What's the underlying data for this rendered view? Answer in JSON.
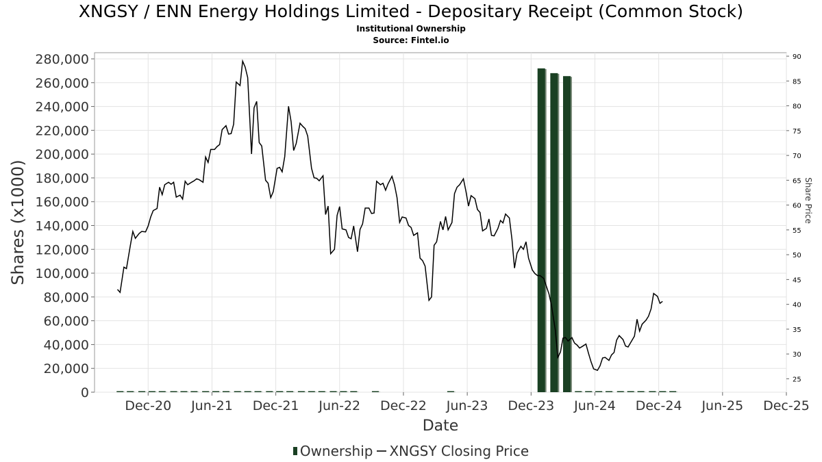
{
  "chart_data": {
    "type": "bar",
    "title": "XNGSY / ENN Energy Holdings Limited - Depositary Receipt (Common Stock)",
    "subtitle": "Institutional Ownership",
    "source": "Source: Fintel.io",
    "xlabel": "Date",
    "ylabel": "Shares (x1000)",
    "y2label": "Share Price",
    "x_ticks": [
      "Dec-20",
      "Jun-21",
      "Dec-21",
      "Jun-22",
      "Dec-22",
      "Jun-23",
      "Dec-23",
      "Jun-24",
      "Dec-24",
      "Jun-25",
      "Dec-25"
    ],
    "x_range": [
      2020.58,
      2026.0
    ],
    "ylim": [
      0,
      280000
    ],
    "y_ticks": [
      "0",
      "20,000",
      "40,000",
      "60,000",
      "80,000",
      "100,000",
      "120,000",
      "140,000",
      "160,000",
      "180,000",
      "200,000",
      "220,000",
      "240,000",
      "260,000",
      "280,000"
    ],
    "y2lim": [
      22.3,
      90.7
    ],
    "y2_ticks": [
      25,
      30,
      35,
      40,
      45,
      50,
      55,
      60,
      65,
      70,
      75,
      80,
      85,
      90
    ],
    "grid": true,
    "legend_position": "bottom",
    "series": [
      {
        "name": "Ownership",
        "kind": "bar",
        "color": "#1a4023",
        "points": [
          {
            "x": 2020.78,
            "y": 600
          },
          {
            "x": 2020.86,
            "y": 400
          },
          {
            "x": 2020.95,
            "y": 400
          },
          {
            "x": 2021.03,
            "y": 400
          },
          {
            "x": 2021.11,
            "y": 400
          },
          {
            "x": 2021.2,
            "y": 400
          },
          {
            "x": 2021.28,
            "y": 500
          },
          {
            "x": 2021.36,
            "y": 400
          },
          {
            "x": 2021.45,
            "y": 400
          },
          {
            "x": 2021.53,
            "y": 400
          },
          {
            "x": 2021.61,
            "y": 400
          },
          {
            "x": 2021.7,
            "y": 400
          },
          {
            "x": 2021.78,
            "y": 400
          },
          {
            "x": 2021.86,
            "y": 400
          },
          {
            "x": 2021.95,
            "y": 400
          },
          {
            "x": 2022.03,
            "y": 400
          },
          {
            "x": 2022.11,
            "y": 400
          },
          {
            "x": 2022.2,
            "y": 400
          },
          {
            "x": 2022.28,
            "y": 400
          },
          {
            "x": 2022.36,
            "y": 300
          },
          {
            "x": 2022.45,
            "y": 300
          },
          {
            "x": 2022.53,
            "y": 300
          },
          {
            "x": 2022.61,
            "y": 300
          },
          {
            "x": 2022.78,
            "y": 400
          },
          {
            "x": 2023.37,
            "y": 300
          },
          {
            "x": 2024.08,
            "y": 272000
          },
          {
            "x": 2024.18,
            "y": 268000
          },
          {
            "x": 2024.28,
            "y": 265500
          },
          {
            "x": 2024.37,
            "y": 400
          },
          {
            "x": 2024.45,
            "y": 400
          },
          {
            "x": 2024.53,
            "y": 400
          },
          {
            "x": 2024.61,
            "y": 400
          },
          {
            "x": 2024.7,
            "y": 400
          },
          {
            "x": 2024.78,
            "y": 400
          },
          {
            "x": 2024.86,
            "y": 400
          },
          {
            "x": 2024.95,
            "y": 400
          },
          {
            "x": 2025.03,
            "y": 400
          },
          {
            "x": 2025.11,
            "y": 400
          }
        ]
      },
      {
        "name": "XNGSY Closing Price",
        "kind": "line",
        "axis": "right",
        "color": "#000000",
        "points": [
          [
            2020.76,
            43.0
          ],
          [
            2020.78,
            42.4
          ],
          [
            2020.81,
            47.5
          ],
          [
            2020.83,
            47.2
          ],
          [
            2020.86,
            51.8
          ],
          [
            2020.88,
            54.7
          ],
          [
            2020.9,
            53.3
          ],
          [
            2020.93,
            54.3
          ],
          [
            2020.95,
            54.7
          ],
          [
            2020.98,
            54.6
          ],
          [
            2021.0,
            55.8
          ],
          [
            2021.02,
            57.6
          ],
          [
            2021.04,
            58.9
          ],
          [
            2021.07,
            59.3
          ],
          [
            2021.09,
            63.6
          ],
          [
            2021.11,
            62.1
          ],
          [
            2021.13,
            64.1
          ],
          [
            2021.16,
            64.6
          ],
          [
            2021.18,
            64.2
          ],
          [
            2021.2,
            64.6
          ],
          [
            2021.22,
            61.6
          ],
          [
            2021.25,
            62.0
          ],
          [
            2021.27,
            61.2
          ],
          [
            2021.29,
            64.8
          ],
          [
            2021.31,
            64.1
          ],
          [
            2021.34,
            64.6
          ],
          [
            2021.36,
            64.9
          ],
          [
            2021.38,
            65.3
          ],
          [
            2021.4,
            65.1
          ],
          [
            2021.43,
            64.6
          ],
          [
            2021.45,
            69.7
          ],
          [
            2021.47,
            68.6
          ],
          [
            2021.49,
            71.2
          ],
          [
            2021.52,
            71.2
          ],
          [
            2021.54,
            71.8
          ],
          [
            2021.56,
            72.2
          ],
          [
            2021.58,
            75.2
          ],
          [
            2021.61,
            76.0
          ],
          [
            2021.63,
            74.3
          ],
          [
            2021.65,
            74.4
          ],
          [
            2021.67,
            76.3
          ],
          [
            2021.69,
            84.8
          ],
          [
            2021.72,
            84.1
          ],
          [
            2021.74,
            89.0
          ],
          [
            2021.76,
            87.8
          ],
          [
            2021.78,
            85.7
          ],
          [
            2021.81,
            70.3
          ],
          [
            2021.83,
            79.6
          ],
          [
            2021.85,
            80.9
          ],
          [
            2021.87,
            72.6
          ],
          [
            2021.89,
            71.9
          ],
          [
            2021.92,
            65.0
          ],
          [
            2021.94,
            64.4
          ],
          [
            2021.96,
            61.5
          ],
          [
            2021.98,
            62.7
          ],
          [
            2022.01,
            67.4
          ],
          [
            2022.03,
            67.6
          ],
          [
            2022.05,
            66.7
          ],
          [
            2022.07,
            69.8
          ],
          [
            2022.1,
            79.9
          ],
          [
            2022.12,
            76.8
          ],
          [
            2022.14,
            71.0
          ],
          [
            2022.16,
            72.4
          ],
          [
            2022.19,
            76.5
          ],
          [
            2022.21,
            75.9
          ],
          [
            2022.23,
            75.4
          ],
          [
            2022.25,
            73.9
          ],
          [
            2022.28,
            67.4
          ],
          [
            2022.3,
            65.5
          ],
          [
            2022.32,
            65.4
          ],
          [
            2022.34,
            64.9
          ],
          [
            2022.37,
            65.9
          ],
          [
            2022.39,
            58.1
          ],
          [
            2022.41,
            59.8
          ],
          [
            2022.43,
            50.2
          ],
          [
            2022.46,
            51.1
          ],
          [
            2022.48,
            57.9
          ],
          [
            2022.5,
            59.7
          ],
          [
            2022.52,
            55.2
          ],
          [
            2022.55,
            55.0
          ],
          [
            2022.57,
            53.5
          ],
          [
            2022.59,
            53.2
          ],
          [
            2022.61,
            55.8
          ],
          [
            2022.64,
            50.6
          ],
          [
            2022.66,
            55.1
          ],
          [
            2022.68,
            56.2
          ],
          [
            2022.7,
            59.4
          ],
          [
            2022.73,
            59.4
          ],
          [
            2022.75,
            58.3
          ],
          [
            2022.77,
            58.4
          ],
          [
            2022.79,
            64.8
          ],
          [
            2022.82,
            64.1
          ],
          [
            2022.84,
            64.4
          ],
          [
            2022.86,
            63.0
          ],
          [
            2022.88,
            64.3
          ],
          [
            2022.91,
            65.8
          ],
          [
            2022.93,
            64.1
          ],
          [
            2022.95,
            61.5
          ],
          [
            2022.97,
            56.5
          ],
          [
            2022.99,
            57.6
          ],
          [
            2023.02,
            57.4
          ],
          [
            2023.04,
            55.9
          ],
          [
            2023.06,
            55.5
          ],
          [
            2023.08,
            53.9
          ],
          [
            2023.11,
            54.4
          ],
          [
            2023.13,
            49.3
          ],
          [
            2023.15,
            48.8
          ],
          [
            2023.17,
            47.7
          ],
          [
            2023.2,
            40.8
          ],
          [
            2023.22,
            41.5
          ],
          [
            2023.24,
            51.9
          ],
          [
            2023.26,
            52.6
          ],
          [
            2023.29,
            56.7
          ],
          [
            2023.31,
            55.0
          ],
          [
            2023.33,
            57.7
          ],
          [
            2023.35,
            55.0
          ],
          [
            2023.38,
            56.5
          ],
          [
            2023.4,
            62.3
          ],
          [
            2023.42,
            63.6
          ],
          [
            2023.44,
            64.1
          ],
          [
            2023.47,
            65.3
          ],
          [
            2023.49,
            62.7
          ],
          [
            2023.51,
            59.8
          ],
          [
            2023.53,
            61.9
          ],
          [
            2023.56,
            61.3
          ],
          [
            2023.58,
            59.1
          ],
          [
            2023.6,
            58.5
          ],
          [
            2023.62,
            54.8
          ],
          [
            2023.65,
            55.3
          ],
          [
            2023.67,
            57.2
          ],
          [
            2023.69,
            53.9
          ],
          [
            2023.71,
            53.8
          ],
          [
            2023.74,
            55.3
          ],
          [
            2023.76,
            56.9
          ],
          [
            2023.78,
            56.4
          ],
          [
            2023.8,
            58.2
          ],
          [
            2023.83,
            57.4
          ],
          [
            2023.85,
            53.1
          ],
          [
            2023.87,
            47.3
          ],
          [
            2023.89,
            50.3
          ],
          [
            2023.92,
            51.7
          ],
          [
            2023.94,
            51.1
          ],
          [
            2023.96,
            52.6
          ],
          [
            2023.98,
            49.3
          ],
          [
            2024.01,
            46.9
          ],
          [
            2024.03,
            46.2
          ],
          [
            2024.05,
            45.8
          ],
          [
            2024.07,
            45.8
          ],
          [
            2024.1,
            45.2
          ],
          [
            2024.12,
            43.6
          ],
          [
            2024.14,
            42.1
          ],
          [
            2024.16,
            39.8
          ],
          [
            2024.19,
            34.8
          ],
          [
            2024.21,
            29.3
          ],
          [
            2024.23,
            30.4
          ],
          [
            2024.25,
            33.2
          ],
          [
            2024.27,
            33.3
          ],
          [
            2024.29,
            32.6
          ],
          [
            2024.32,
            33.3
          ],
          [
            2024.34,
            32.2
          ],
          [
            2024.36,
            31.8
          ],
          [
            2024.38,
            31.2
          ],
          [
            2024.4,
            31.5
          ],
          [
            2024.43,
            32.0
          ],
          [
            2024.45,
            30.1
          ],
          [
            2024.47,
            28.4
          ],
          [
            2024.49,
            27.0
          ],
          [
            2024.52,
            26.7
          ],
          [
            2024.54,
            27.6
          ],
          [
            2024.56,
            29.2
          ],
          [
            2024.58,
            29.3
          ],
          [
            2024.61,
            28.7
          ],
          [
            2024.63,
            29.8
          ],
          [
            2024.65,
            30.3
          ],
          [
            2024.67,
            32.8
          ],
          [
            2024.69,
            33.7
          ],
          [
            2024.72,
            32.9
          ],
          [
            2024.74,
            31.6
          ],
          [
            2024.76,
            31.4
          ],
          [
            2024.78,
            32.3
          ],
          [
            2024.81,
            33.6
          ],
          [
            2024.83,
            37.0
          ],
          [
            2024.85,
            34.6
          ],
          [
            2024.87,
            36.0
          ],
          [
            2024.9,
            36.8
          ],
          [
            2024.92,
            37.6
          ],
          [
            2024.94,
            39.1
          ],
          [
            2024.96,
            42.2
          ],
          [
            2024.99,
            41.6
          ],
          [
            2025.01,
            40.2
          ],
          [
            2025.03,
            40.6
          ]
        ]
      }
    ]
  },
  "legend": {
    "items": [
      {
        "label": "Ownership"
      },
      {
        "label": "XNGSY Closing Price"
      }
    ]
  }
}
